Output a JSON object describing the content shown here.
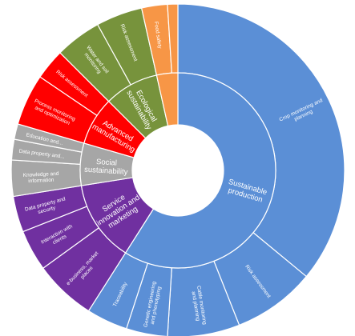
{
  "chart_data": {
    "type": "sunburst",
    "title": "",
    "colors": {
      "Sustainable production": "#5b8fd6",
      "Service innovation and marketing": "#7030a0",
      "Social sustainability": "#a6a6a6",
      "Advanced manufacturing": "#ff0000",
      "Ecological sustainability": "#77933c",
      "Food safety": "#f79646"
    },
    "inner": [
      {
        "name": "Sustainable production",
        "label_lines": [
          "Sustainable",
          "production"
        ],
        "value": 59
      },
      {
        "name": "Service innovation and marketing",
        "label_lines": [
          "Service",
          "innovation and",
          "marketing"
        ],
        "value": 13.5
      },
      {
        "name": "Social sustainability",
        "label_lines": [
          "Social",
          "sustainability"
        ],
        "value": 7
      },
      {
        "name": "Advanced manufacturing",
        "label_lines": [
          "Advanced",
          "manufacturing"
        ],
        "value": 8
      },
      {
        "name": "Ecological sustainability",
        "label_lines": [
          "Ecological",
          "sustainability"
        ],
        "value": 9
      },
      {
        "name": "Food safety",
        "label_lines": [],
        "value": 3.5
      }
    ],
    "outer": [
      {
        "parent": "Sustainable production",
        "label_lines": [
          "Crop monitoring and",
          "planning"
        ],
        "value": 36
      },
      {
        "parent": "Sustainable production",
        "label_lines": [
          "Risk assessment"
        ],
        "value": 8
      },
      {
        "parent": "Sustainable production",
        "label_lines": [
          "Cattle monitoring",
          "and planning"
        ],
        "value": 7
      },
      {
        "parent": "Sustainable production",
        "label_lines": [
          "Genetic engineering",
          "and phenotyping"
        ],
        "value": 4
      },
      {
        "parent": "Sustainable production",
        "label_lines": [
          "Traceability"
        ],
        "value": 4
      },
      {
        "parent": "Service innovation and marketing",
        "label_lines": [
          "e-business, market",
          "places"
        ],
        "value": 6
      },
      {
        "parent": "Service innovation and marketing",
        "label_lines": [
          "Interaction with",
          "clients"
        ],
        "value": 4
      },
      {
        "parent": "Service innovation and marketing",
        "label_lines": [
          "Data property and",
          "security"
        ],
        "value": 3.5
      },
      {
        "parent": "Social sustainability",
        "label_lines": [
          "Knowledge and",
          "information"
        ],
        "value": 3.5
      },
      {
        "parent": "Social sustainability",
        "label_lines": [
          "Data property and..."
        ],
        "value": 2
      },
      {
        "parent": "Social sustainability",
        "label_lines": [
          "Education and..."
        ],
        "value": 1.5
      },
      {
        "parent": "Advanced manufacturing",
        "label_lines": [
          "Process monitoring",
          "and optimization"
        ],
        "value": 5
      },
      {
        "parent": "Advanced manufacturing",
        "label_lines": [
          "Risk assessment"
        ],
        "value": 3
      },
      {
        "parent": "Ecological sustainability",
        "label_lines": [
          "Water and soil",
          "monitoring"
        ],
        "value": 4.5
      },
      {
        "parent": "Ecological sustainability",
        "label_lines": [
          "Risk assessment"
        ],
        "value": 4.5
      },
      {
        "parent": "Food safety",
        "label_lines": [
          "Food safety"
        ],
        "value": 2.5
      },
      {
        "parent": "Food safety",
        "label_lines": [],
        "value": 1
      }
    ]
  }
}
